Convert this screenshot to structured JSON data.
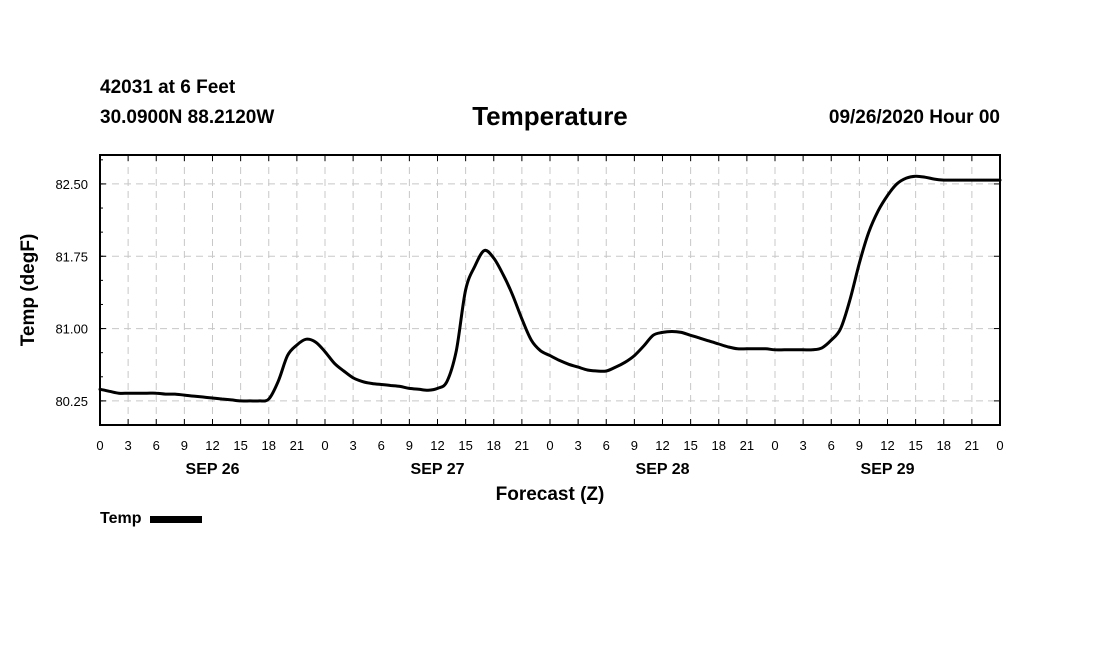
{
  "header": {
    "station": "42031 at 6 Feet",
    "coords": "30.0900N 88.2120W",
    "title": "Temperature",
    "datetime": "09/26/2020 Hour 00"
  },
  "chart_data": {
    "type": "line",
    "title": "Temperature",
    "xlabel": "Forecast (Z)",
    "ylabel": "Temp (degF)",
    "ylim": [
      80.0,
      82.8
    ],
    "yticks": [
      "80.25",
      "81.00",
      "81.75",
      "82.50"
    ],
    "xlim": [
      0,
      96
    ],
    "xtick_labels": [
      "0",
      "3",
      "6",
      "9",
      "12",
      "15",
      "18",
      "21",
      "0",
      "3",
      "6",
      "9",
      "12",
      "15",
      "18",
      "21",
      "0",
      "3",
      "6",
      "9",
      "12",
      "15",
      "18",
      "21",
      "0",
      "3",
      "6",
      "9",
      "12",
      "15",
      "18",
      "21",
      "0"
    ],
    "date_labels": [
      {
        "label": "SEP 26",
        "hour": 12
      },
      {
        "label": "SEP 27",
        "hour": 36
      },
      {
        "label": "SEP 28",
        "hour": 60
      },
      {
        "label": "SEP 29",
        "hour": 84
      }
    ],
    "grid": true,
    "legend": "bottom-left",
    "series": [
      {
        "name": "Temp",
        "color": "#000000",
        "x": [
          0,
          1,
          2,
          3,
          4,
          5,
          6,
          7,
          8,
          9,
          10,
          11,
          12,
          13,
          14,
          15,
          16,
          17,
          18,
          19,
          20,
          21,
          22,
          23,
          24,
          25,
          26,
          27,
          28,
          29,
          30,
          31,
          32,
          33,
          34,
          35,
          36,
          37,
          38,
          39,
          40,
          41,
          42,
          43,
          44,
          45,
          46,
          47,
          48,
          49,
          50,
          51,
          52,
          53,
          54,
          55,
          56,
          57,
          58,
          59,
          60,
          61,
          62,
          63,
          64,
          65,
          66,
          67,
          68,
          69,
          70,
          71,
          72,
          73,
          74,
          75,
          76,
          77,
          78,
          79,
          80,
          81,
          82,
          83,
          84,
          85,
          86,
          87,
          88,
          89,
          90,
          91,
          92,
          93,
          94,
          95,
          96
        ],
        "y": [
          80.37,
          80.35,
          80.33,
          80.33,
          80.33,
          80.33,
          80.33,
          80.32,
          80.32,
          80.31,
          80.3,
          80.29,
          80.28,
          80.27,
          80.26,
          80.25,
          80.25,
          80.25,
          80.27,
          80.45,
          80.72,
          80.83,
          80.89,
          80.86,
          80.76,
          80.64,
          80.56,
          80.49,
          80.45,
          80.43,
          80.42,
          80.41,
          80.4,
          80.38,
          80.37,
          80.36,
          80.38,
          80.45,
          80.77,
          81.4,
          81.65,
          81.81,
          81.73,
          81.56,
          81.35,
          81.1,
          80.88,
          80.77,
          80.72,
          80.67,
          80.63,
          80.6,
          80.57,
          80.56,
          80.56,
          80.6,
          80.65,
          80.72,
          80.82,
          80.93,
          80.96,
          80.97,
          80.96,
          80.93,
          80.9,
          80.87,
          80.84,
          80.81,
          80.79,
          80.79,
          80.79,
          80.79,
          80.78,
          80.78,
          80.78,
          80.78,
          80.78,
          80.8,
          80.88,
          81.0,
          81.3,
          81.68,
          82.0,
          82.22,
          82.38,
          82.5,
          82.56,
          82.58,
          82.57,
          82.55,
          82.54,
          82.54,
          82.54,
          82.54,
          82.54,
          82.54,
          82.54
        ]
      }
    ]
  }
}
